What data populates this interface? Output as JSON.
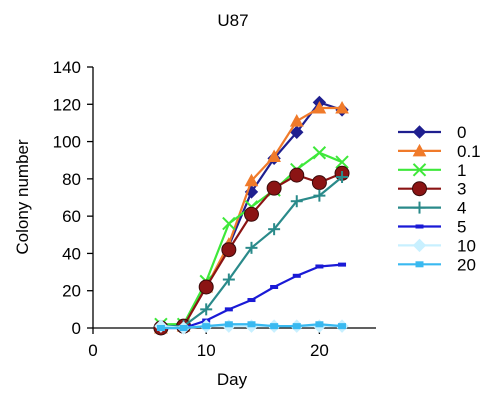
{
  "chart_data": {
    "type": "line",
    "title": "U87",
    "xlabel": "Day",
    "ylabel": "Colony number",
    "xlim": [
      0,
      25
    ],
    "ylim": [
      0,
      140
    ],
    "xticks": [
      0,
      10,
      20
    ],
    "yticks": [
      0,
      20,
      40,
      60,
      80,
      100,
      120,
      140
    ],
    "grid": false,
    "legend_position": "right",
    "series": [
      {
        "name": "0",
        "color": "#1f1f8f",
        "marker": "diamond",
        "x": [
          6,
          8,
          10,
          12,
          14,
          16,
          18,
          20,
          22
        ],
        "y": [
          0,
          1,
          22,
          44,
          73,
          91,
          105,
          121,
          117
        ]
      },
      {
        "name": "0.1",
        "color": "#f07a2a",
        "marker": "triangle",
        "x": [
          6,
          8,
          10,
          12,
          14,
          16,
          18,
          20,
          22
        ],
        "y": [
          0,
          1,
          22,
          45,
          79,
          92,
          111,
          118,
          118
        ]
      },
      {
        "name": "1",
        "color": "#3ee83a",
        "marker": "x",
        "x": [
          6,
          8,
          10,
          12,
          14,
          16,
          18,
          20,
          22
        ],
        "y": [
          2,
          2,
          25,
          56,
          65,
          74,
          85,
          94,
          89
        ]
      },
      {
        "name": "3",
        "color": "#8b1414",
        "marker": "circle",
        "x": [
          6,
          8,
          10,
          12,
          14,
          16,
          18,
          20,
          22
        ],
        "y": [
          0,
          1,
          22,
          42,
          61,
          75,
          82,
          78,
          83
        ]
      },
      {
        "name": "4",
        "color": "#2a8a8a",
        "marker": "plus",
        "x": [
          6,
          8,
          10,
          12,
          14,
          16,
          18,
          20,
          22
        ],
        "y": [
          1,
          1,
          10,
          26,
          43,
          53,
          68,
          71,
          81
        ]
      },
      {
        "name": "5",
        "color": "#1a1ad6",
        "marker": "dash",
        "x": [
          6,
          8,
          10,
          12,
          14,
          16,
          18,
          20,
          22
        ],
        "y": [
          0,
          0,
          4,
          10,
          15,
          22,
          28,
          33,
          34
        ]
      },
      {
        "name": "10",
        "color": "#c8f0ff",
        "marker": "diamond",
        "x": [
          6,
          8,
          10,
          12,
          14,
          16,
          18,
          20,
          22
        ],
        "y": [
          1,
          0,
          1,
          1,
          1,
          1,
          1,
          1,
          1
        ]
      },
      {
        "name": "20",
        "color": "#39b9f0",
        "marker": "square",
        "x": [
          6,
          8,
          10,
          12,
          14,
          16,
          18,
          20,
          22
        ],
        "y": [
          0,
          0,
          1,
          2,
          2,
          1,
          1,
          2,
          1
        ]
      }
    ]
  }
}
